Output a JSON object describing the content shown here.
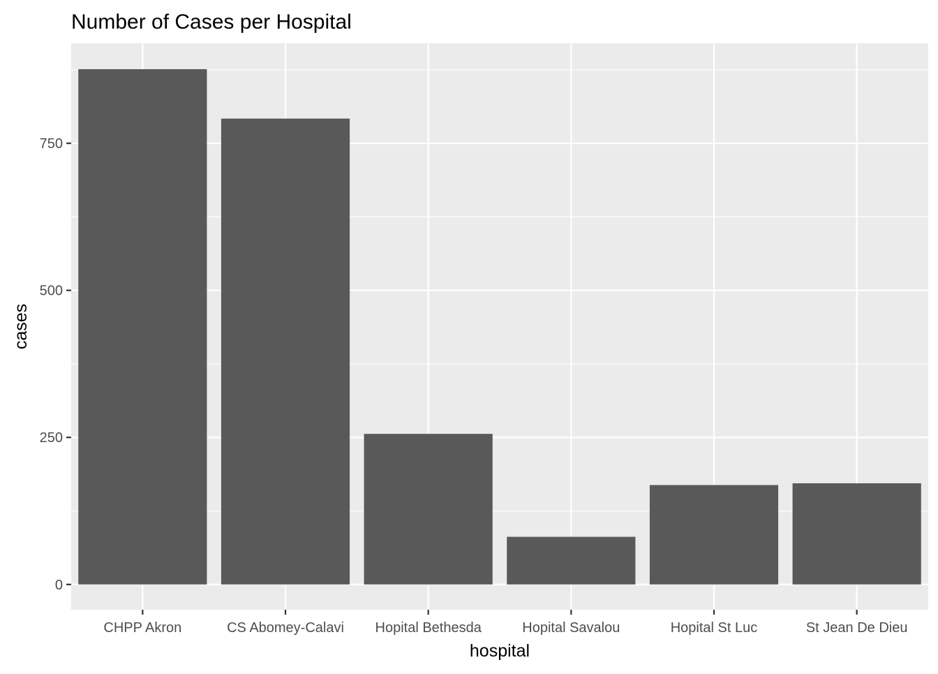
{
  "chart_data": {
    "type": "bar",
    "title": "Number of Cases per Hospital",
    "xlabel": "hospital",
    "ylabel": "cases",
    "categories": [
      "CHPP Akron",
      "CS Abomey-Calavi",
      "Hopital Bethesda",
      "Hopital Savalou",
      "Hopital St Luc",
      "St Jean De Dieu"
    ],
    "values": [
      876,
      792,
      256,
      81,
      169,
      172
    ],
    "ylim": [
      -43,
      920
    ],
    "yticks": [
      0,
      250,
      500,
      750
    ],
    "yticklabels": [
      "0",
      "250",
      "500",
      "750"
    ],
    "grid": true,
    "legend": "none",
    "colors": {
      "bar": "#595959",
      "panel": "#EBEBEB",
      "grid": "#FFFFFF",
      "text": "#000000",
      "tick_text": "#4D4D4D",
      "tick": "#333333"
    }
  }
}
